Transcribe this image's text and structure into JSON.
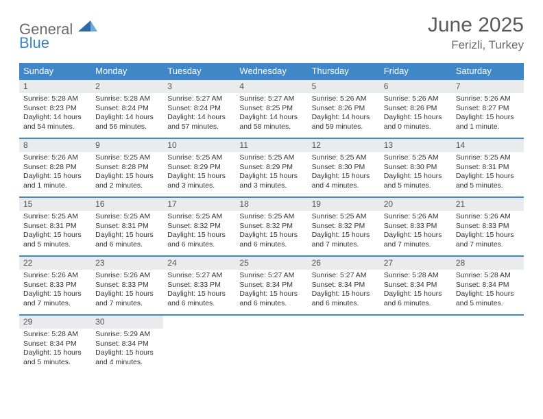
{
  "logo": {
    "word1": "General",
    "word2": "Blue"
  },
  "title": "June 2025",
  "location": "Ferizli, Turkey",
  "colors": {
    "header_bg": "#3f87c7",
    "header_text": "#ffffff",
    "daynum_bg": "#e9ebec",
    "row_border": "#3f87c7",
    "logo_gray": "#6b6b6b",
    "logo_blue": "#3b82c4",
    "title_color": "#5a5a5a"
  },
  "day_names": [
    "Sunday",
    "Monday",
    "Tuesday",
    "Wednesday",
    "Thursday",
    "Friday",
    "Saturday"
  ],
  "weeks": [
    [
      {
        "n": "1",
        "sr": "Sunrise: 5:28 AM",
        "ss": "Sunset: 8:23 PM",
        "dl1": "Daylight: 14 hours",
        "dl2": "and 54 minutes."
      },
      {
        "n": "2",
        "sr": "Sunrise: 5:28 AM",
        "ss": "Sunset: 8:24 PM",
        "dl1": "Daylight: 14 hours",
        "dl2": "and 56 minutes."
      },
      {
        "n": "3",
        "sr": "Sunrise: 5:27 AM",
        "ss": "Sunset: 8:24 PM",
        "dl1": "Daylight: 14 hours",
        "dl2": "and 57 minutes."
      },
      {
        "n": "4",
        "sr": "Sunrise: 5:27 AM",
        "ss": "Sunset: 8:25 PM",
        "dl1": "Daylight: 14 hours",
        "dl2": "and 58 minutes."
      },
      {
        "n": "5",
        "sr": "Sunrise: 5:26 AM",
        "ss": "Sunset: 8:26 PM",
        "dl1": "Daylight: 14 hours",
        "dl2": "and 59 minutes."
      },
      {
        "n": "6",
        "sr": "Sunrise: 5:26 AM",
        "ss": "Sunset: 8:26 PM",
        "dl1": "Daylight: 15 hours",
        "dl2": "and 0 minutes."
      },
      {
        "n": "7",
        "sr": "Sunrise: 5:26 AM",
        "ss": "Sunset: 8:27 PM",
        "dl1": "Daylight: 15 hours",
        "dl2": "and 1 minute."
      }
    ],
    [
      {
        "n": "8",
        "sr": "Sunrise: 5:26 AM",
        "ss": "Sunset: 8:28 PM",
        "dl1": "Daylight: 15 hours",
        "dl2": "and 1 minute."
      },
      {
        "n": "9",
        "sr": "Sunrise: 5:25 AM",
        "ss": "Sunset: 8:28 PM",
        "dl1": "Daylight: 15 hours",
        "dl2": "and 2 minutes."
      },
      {
        "n": "10",
        "sr": "Sunrise: 5:25 AM",
        "ss": "Sunset: 8:29 PM",
        "dl1": "Daylight: 15 hours",
        "dl2": "and 3 minutes."
      },
      {
        "n": "11",
        "sr": "Sunrise: 5:25 AM",
        "ss": "Sunset: 8:29 PM",
        "dl1": "Daylight: 15 hours",
        "dl2": "and 3 minutes."
      },
      {
        "n": "12",
        "sr": "Sunrise: 5:25 AM",
        "ss": "Sunset: 8:30 PM",
        "dl1": "Daylight: 15 hours",
        "dl2": "and 4 minutes."
      },
      {
        "n": "13",
        "sr": "Sunrise: 5:25 AM",
        "ss": "Sunset: 8:30 PM",
        "dl1": "Daylight: 15 hours",
        "dl2": "and 5 minutes."
      },
      {
        "n": "14",
        "sr": "Sunrise: 5:25 AM",
        "ss": "Sunset: 8:31 PM",
        "dl1": "Daylight: 15 hours",
        "dl2": "and 5 minutes."
      }
    ],
    [
      {
        "n": "15",
        "sr": "Sunrise: 5:25 AM",
        "ss": "Sunset: 8:31 PM",
        "dl1": "Daylight: 15 hours",
        "dl2": "and 5 minutes."
      },
      {
        "n": "16",
        "sr": "Sunrise: 5:25 AM",
        "ss": "Sunset: 8:31 PM",
        "dl1": "Daylight: 15 hours",
        "dl2": "and 6 minutes."
      },
      {
        "n": "17",
        "sr": "Sunrise: 5:25 AM",
        "ss": "Sunset: 8:32 PM",
        "dl1": "Daylight: 15 hours",
        "dl2": "and 6 minutes."
      },
      {
        "n": "18",
        "sr": "Sunrise: 5:25 AM",
        "ss": "Sunset: 8:32 PM",
        "dl1": "Daylight: 15 hours",
        "dl2": "and 6 minutes."
      },
      {
        "n": "19",
        "sr": "Sunrise: 5:25 AM",
        "ss": "Sunset: 8:32 PM",
        "dl1": "Daylight: 15 hours",
        "dl2": "and 7 minutes."
      },
      {
        "n": "20",
        "sr": "Sunrise: 5:26 AM",
        "ss": "Sunset: 8:33 PM",
        "dl1": "Daylight: 15 hours",
        "dl2": "and 7 minutes."
      },
      {
        "n": "21",
        "sr": "Sunrise: 5:26 AM",
        "ss": "Sunset: 8:33 PM",
        "dl1": "Daylight: 15 hours",
        "dl2": "and 7 minutes."
      }
    ],
    [
      {
        "n": "22",
        "sr": "Sunrise: 5:26 AM",
        "ss": "Sunset: 8:33 PM",
        "dl1": "Daylight: 15 hours",
        "dl2": "and 7 minutes."
      },
      {
        "n": "23",
        "sr": "Sunrise: 5:26 AM",
        "ss": "Sunset: 8:33 PM",
        "dl1": "Daylight: 15 hours",
        "dl2": "and 7 minutes."
      },
      {
        "n": "24",
        "sr": "Sunrise: 5:27 AM",
        "ss": "Sunset: 8:33 PM",
        "dl1": "Daylight: 15 hours",
        "dl2": "and 6 minutes."
      },
      {
        "n": "25",
        "sr": "Sunrise: 5:27 AM",
        "ss": "Sunset: 8:34 PM",
        "dl1": "Daylight: 15 hours",
        "dl2": "and 6 minutes."
      },
      {
        "n": "26",
        "sr": "Sunrise: 5:27 AM",
        "ss": "Sunset: 8:34 PM",
        "dl1": "Daylight: 15 hours",
        "dl2": "and 6 minutes."
      },
      {
        "n": "27",
        "sr": "Sunrise: 5:28 AM",
        "ss": "Sunset: 8:34 PM",
        "dl1": "Daylight: 15 hours",
        "dl2": "and 6 minutes."
      },
      {
        "n": "28",
        "sr": "Sunrise: 5:28 AM",
        "ss": "Sunset: 8:34 PM",
        "dl1": "Daylight: 15 hours",
        "dl2": "and 5 minutes."
      }
    ],
    [
      {
        "n": "29",
        "sr": "Sunrise: 5:28 AM",
        "ss": "Sunset: 8:34 PM",
        "dl1": "Daylight: 15 hours",
        "dl2": "and 5 minutes."
      },
      {
        "n": "30",
        "sr": "Sunrise: 5:29 AM",
        "ss": "Sunset: 8:34 PM",
        "dl1": "Daylight: 15 hours",
        "dl2": "and 4 minutes."
      },
      {
        "empty": true
      },
      {
        "empty": true
      },
      {
        "empty": true
      },
      {
        "empty": true
      },
      {
        "empty": true
      }
    ]
  ]
}
